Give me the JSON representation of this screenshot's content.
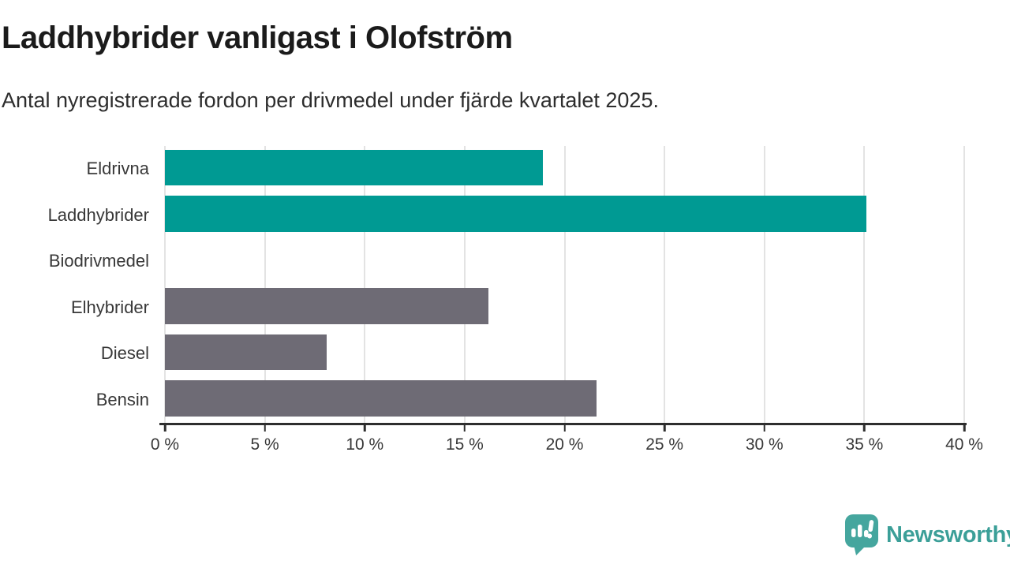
{
  "header": {
    "title": "Laddhybrider vanligast i Olofström",
    "subtitle": "Antal nyregistrerade fordon per drivmedel under fjärde kvartalet 2025."
  },
  "chart_data": {
    "type": "bar",
    "orientation": "horizontal",
    "title": "Laddhybrider vanligast i Olofström",
    "subtitle": "Antal nyregistrerade fordon per drivmedel under fjärde kvartalet 2025.",
    "categories": [
      "Eldrivna",
      "Laddhybrider",
      "Biodrivmedel",
      "Elhybrider",
      "Diesel",
      "Bensin"
    ],
    "values": [
      18.9,
      35.1,
      0,
      16.2,
      8.1,
      21.6
    ],
    "unit": "%",
    "bar_colors": [
      "#009a93",
      "#009a93",
      "#6e6b75",
      "#6e6b75",
      "#6e6b75",
      "#6e6b75"
    ],
    "highlight_color": "#009a93",
    "default_color": "#6e6b75",
    "xlim": [
      0,
      40
    ],
    "x_ticks": [
      0,
      5,
      10,
      15,
      20,
      25,
      30,
      35,
      40
    ],
    "x_tick_suffix": " %",
    "grid": "vertical",
    "gridline_color": "#e3e3e3",
    "axis_color": "#2e2e2e",
    "legend": "none"
  },
  "footer": {
    "brand": "Newsworthy",
    "brand_color": "#3b9f98",
    "icon_color": "#45a69e"
  }
}
